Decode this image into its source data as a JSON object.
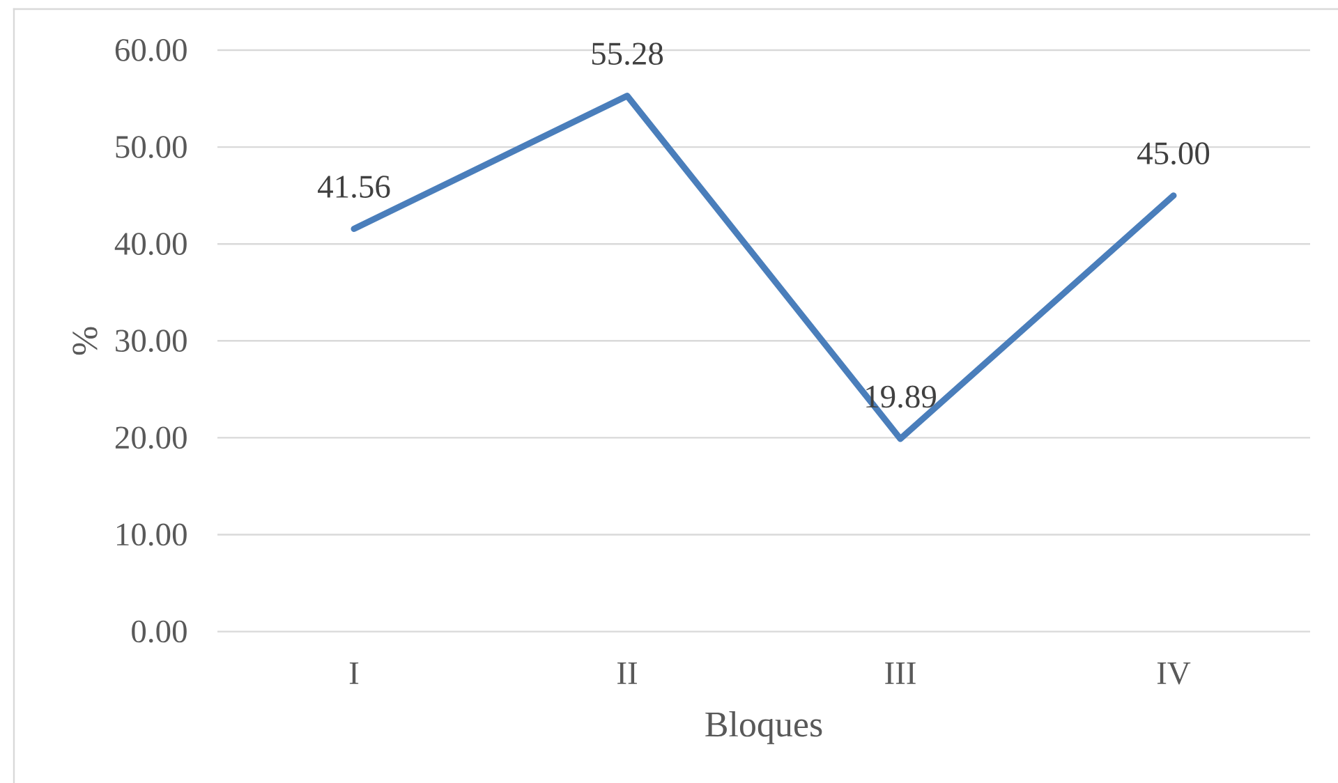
{
  "chart_data": {
    "type": "line",
    "xlabel": "Bloques",
    "ylabel": "%",
    "categories": [
      "I",
      "II",
      "III",
      "IV"
    ],
    "values": [
      41.56,
      55.28,
      19.89,
      45.0
    ],
    "value_labels": [
      "41.56",
      "55.28",
      "19.89",
      "45.00"
    ],
    "color": "#4a7ebb",
    "ylim": [
      0,
      60
    ],
    "yticks": [
      {
        "value": 0,
        "label": "0.00"
      },
      {
        "value": 10,
        "label": "10.00"
      },
      {
        "value": 20,
        "label": "20.00"
      },
      {
        "value": 30,
        "label": "30.00"
      },
      {
        "value": 40,
        "label": "40.00"
      },
      {
        "value": 50,
        "label": "50.00"
      },
      {
        "value": 60,
        "label": "60.00"
      }
    ],
    "grid": "y"
  }
}
